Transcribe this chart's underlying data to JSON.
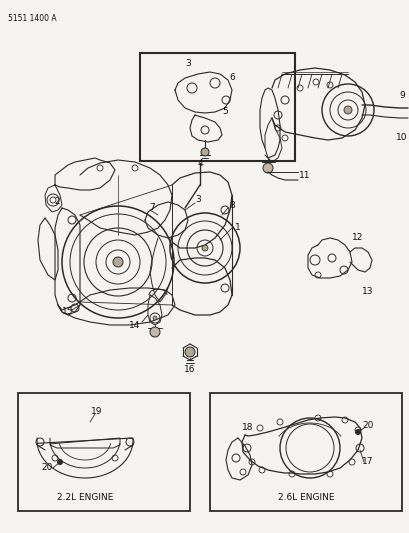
{
  "bg_color": "#f5f4f0",
  "part_number": "5151 1400 A",
  "fig_width": 4.1,
  "fig_height": 5.33,
  "dpi": 100,
  "line_color": "#2a2a2a",
  "label_color": "#111111"
}
